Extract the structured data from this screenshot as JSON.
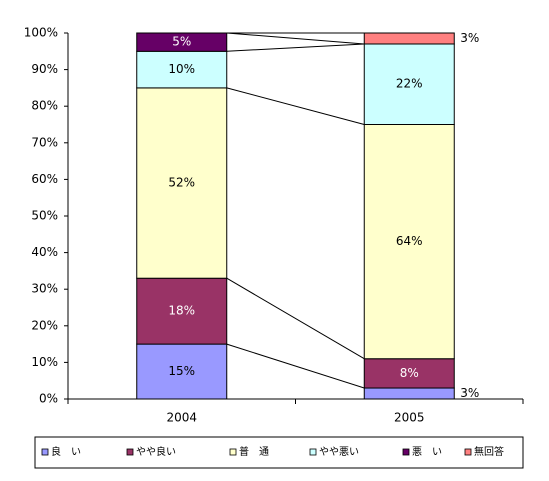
{
  "chart_data": {
    "type": "stacked_bar",
    "categories": [
      "2004",
      "2005"
    ],
    "series": [
      {
        "name": "良　い",
        "color": "#9999ff",
        "values": [
          15,
          3
        ],
        "value_labels": [
          "15%",
          "3%"
        ]
      },
      {
        "name": "やや良い",
        "color": "#993366",
        "values": [
          18,
          8
        ],
        "value_labels": [
          "18%",
          "8%"
        ]
      },
      {
        "name": "普　通",
        "color": "#ffffcc",
        "values": [
          52,
          64
        ],
        "value_labels": [
          "52%",
          "64%"
        ]
      },
      {
        "name": "やや悪い",
        "color": "#ccffff",
        "values": [
          10,
          22
        ],
        "value_labels": [
          "10%",
          "22%"
        ]
      },
      {
        "name": "悪　い",
        "color": "#660066",
        "values": [
          5,
          0
        ],
        "value_labels": [
          "5%",
          null
        ]
      },
      {
        "name": "無回答",
        "color": "#ff8080",
        "values": [
          0,
          3
        ],
        "value_labels": [
          null,
          "3%"
        ]
      }
    ],
    "ylim": [
      0,
      100
    ],
    "yticks": [
      {
        "value": 0,
        "label": "0%"
      },
      {
        "value": 10,
        "label": "10%"
      },
      {
        "value": 20,
        "label": "20%"
      },
      {
        "value": 30,
        "label": "30%"
      },
      {
        "value": 40,
        "label": "40%"
      },
      {
        "value": 50,
        "label": "50%"
      },
      {
        "value": 60,
        "label": "60%"
      },
      {
        "value": 70,
        "label": "70%"
      },
      {
        "value": 80,
        "label": "80%"
      },
      {
        "value": 90,
        "label": "90%"
      },
      {
        "value": 100,
        "label": "100%"
      }
    ],
    "legend": "bottom"
  }
}
